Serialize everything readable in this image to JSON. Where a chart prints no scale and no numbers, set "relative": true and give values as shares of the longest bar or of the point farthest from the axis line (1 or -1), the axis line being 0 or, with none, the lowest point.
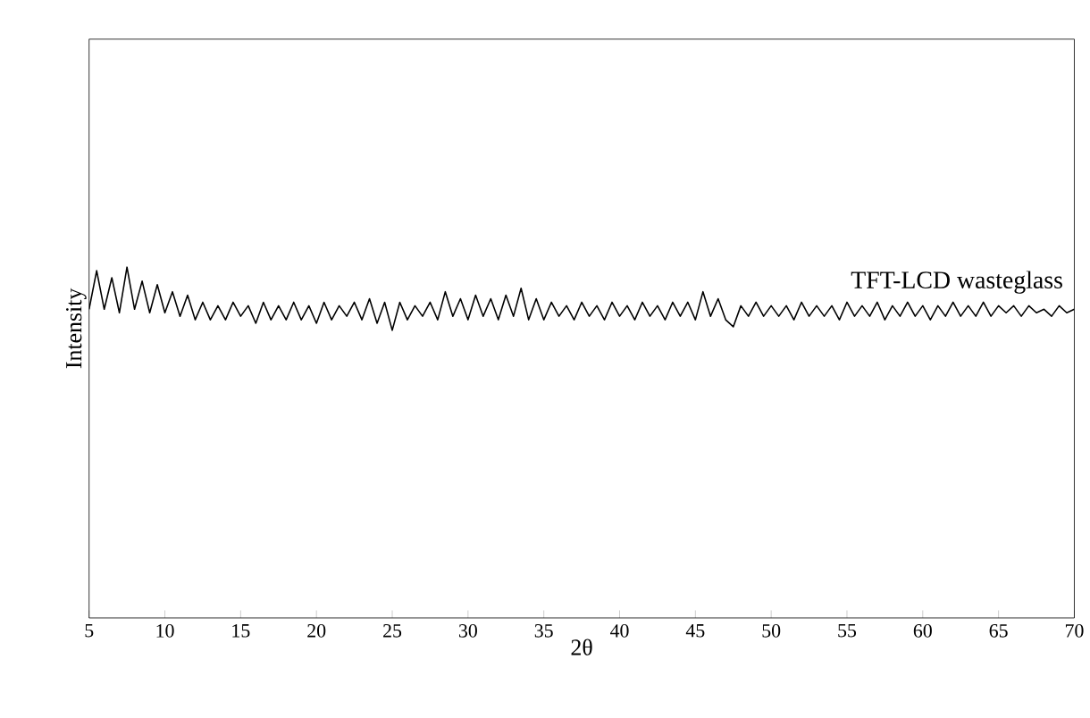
{
  "chart_data": {
    "type": "line",
    "relative": true,
    "xlabel": "2θ",
    "ylabel": "Intensity",
    "annotations": [
      "TFT-LCD wasteglass"
    ],
    "xlim": [
      5,
      70
    ],
    "xticks": [
      5,
      10,
      15,
      20,
      25,
      30,
      35,
      40,
      45,
      50,
      55,
      60,
      65,
      70
    ],
    "tick_labels": "x",
    "grid": false,
    "marker": "none",
    "line_style": "solid",
    "x": [
      5.0,
      5.5,
      6.0,
      6.5,
      7.0,
      7.5,
      8.0,
      8.5,
      9.0,
      9.5,
      10.0,
      10.5,
      11.0,
      11.5,
      12.0,
      12.5,
      13.0,
      13.5,
      14.0,
      14.5,
      15.0,
      15.5,
      16.0,
      16.5,
      17.0,
      17.5,
      18.0,
      18.5,
      19.0,
      19.5,
      20.0,
      20.5,
      21.0,
      21.5,
      22.0,
      22.5,
      23.0,
      23.5,
      24.0,
      24.5,
      25.0,
      25.5,
      26.0,
      26.5,
      27.0,
      27.5,
      28.0,
      28.5,
      29.0,
      29.5,
      30.0,
      30.5,
      31.0,
      31.5,
      32.0,
      32.5,
      33.0,
      33.5,
      34.0,
      34.5,
      35.0,
      35.5,
      36.0,
      36.5,
      37.0,
      37.5,
      38.0,
      38.5,
      39.0,
      39.5,
      40.0,
      40.5,
      41.0,
      41.5,
      42.0,
      42.5,
      43.0,
      43.5,
      44.0,
      44.5,
      45.0,
      45.5,
      46.0,
      46.5,
      47.0,
      47.5,
      48.0,
      48.5,
      49.0,
      49.5,
      50.0,
      50.5,
      51.0,
      51.5,
      52.0,
      52.5,
      53.0,
      53.5,
      54.0,
      54.5,
      55.0,
      55.5,
      56.0,
      56.5,
      57.0,
      57.5,
      58.0,
      58.5,
      59.0,
      59.5,
      60.0,
      60.5,
      61.0,
      61.5,
      62.0,
      62.5,
      63.0,
      63.5,
      64.0,
      64.5,
      65.0,
      65.5,
      66.0,
      66.5,
      67.0,
      67.5,
      68.0,
      68.5,
      69.0,
      69.5,
      70.0
    ],
    "series": [
      {
        "color": "#000000",
        "values": [
          0.88,
          0.99,
          0.88,
          0.97,
          0.87,
          1.0,
          0.88,
          0.96,
          0.87,
          0.95,
          0.87,
          0.93,
          0.86,
          0.92,
          0.85,
          0.9,
          0.85,
          0.89,
          0.85,
          0.9,
          0.86,
          0.89,
          0.84,
          0.9,
          0.85,
          0.89,
          0.85,
          0.9,
          0.85,
          0.89,
          0.84,
          0.9,
          0.85,
          0.89,
          0.86,
          0.9,
          0.85,
          0.91,
          0.84,
          0.9,
          0.82,
          0.9,
          0.85,
          0.89,
          0.86,
          0.9,
          0.85,
          0.93,
          0.86,
          0.91,
          0.85,
          0.92,
          0.86,
          0.91,
          0.85,
          0.92,
          0.86,
          0.94,
          0.85,
          0.91,
          0.85,
          0.9,
          0.86,
          0.89,
          0.85,
          0.9,
          0.86,
          0.89,
          0.85,
          0.9,
          0.86,
          0.89,
          0.85,
          0.9,
          0.86,
          0.89,
          0.85,
          0.9,
          0.86,
          0.9,
          0.85,
          0.93,
          0.86,
          0.91,
          0.85,
          0.83,
          0.89,
          0.86,
          0.9,
          0.86,
          0.89,
          0.86,
          0.89,
          0.85,
          0.9,
          0.86,
          0.89,
          0.86,
          0.89,
          0.85,
          0.9,
          0.86,
          0.89,
          0.86,
          0.9,
          0.85,
          0.89,
          0.86,
          0.9,
          0.86,
          0.89,
          0.85,
          0.89,
          0.86,
          0.9,
          0.86,
          0.89,
          0.86,
          0.9,
          0.86,
          0.89,
          0.87,
          0.89,
          0.86,
          0.89,
          0.87,
          0.88,
          0.86,
          0.89,
          0.87,
          0.88
        ]
      }
    ]
  }
}
